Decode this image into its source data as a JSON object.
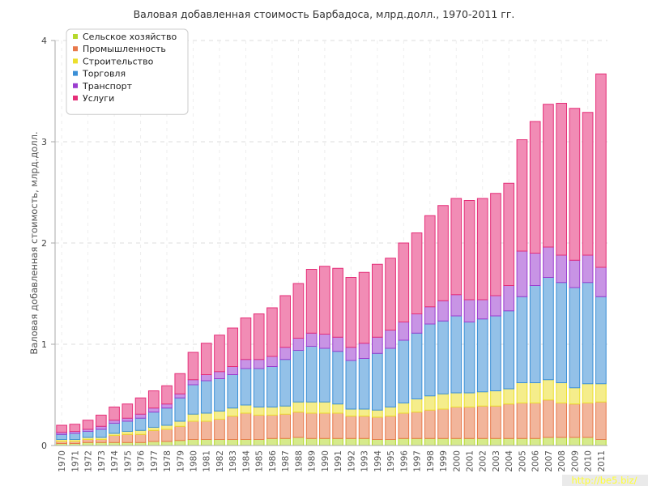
{
  "chart_data": {
    "type": "bar",
    "stacked": true,
    "title": "Валовая добавленная стоимость Барбадоса, млрд.долл., 1970-2011 гг.",
    "xlabel": "",
    "ylabel": "Валовая добавленная стоимость, млрд.долл.",
    "ylim": [
      0,
      4
    ],
    "yticks": [
      "0",
      "1",
      "2",
      "3",
      "4"
    ],
    "grid": true,
    "legend_position": "top-left",
    "categories": [
      "1970",
      "1971",
      "1972",
      "1973",
      "1974",
      "1975",
      "1976",
      "1977",
      "1978",
      "1979",
      "1980",
      "1981",
      "1982",
      "1983",
      "1984",
      "1985",
      "1986",
      "1987",
      "1988",
      "1989",
      "1990",
      "1991",
      "1992",
      "1993",
      "1994",
      "1995",
      "1996",
      "1997",
      "1998",
      "1999",
      "2000",
      "2001",
      "2002",
      "2003",
      "2004",
      "2005",
      "2006",
      "2007",
      "2008",
      "2009",
      "2010",
      "2011"
    ],
    "series": [
      {
        "name": "Сельское хозяйство",
        "color": "#b5d82c",
        "values": [
          0.02,
          0.02,
          0.03,
          0.03,
          0.03,
          0.03,
          0.03,
          0.04,
          0.04,
          0.05,
          0.06,
          0.06,
          0.06,
          0.06,
          0.06,
          0.06,
          0.07,
          0.07,
          0.08,
          0.07,
          0.07,
          0.07,
          0.07,
          0.07,
          0.06,
          0.06,
          0.07,
          0.07,
          0.07,
          0.07,
          0.07,
          0.07,
          0.07,
          0.07,
          0.07,
          0.07,
          0.07,
          0.08,
          0.08,
          0.08,
          0.08,
          0.06
        ]
      },
      {
        "name": "Промышленность",
        "color": "#e8784a",
        "values": [
          0.02,
          0.02,
          0.03,
          0.03,
          0.07,
          0.08,
          0.08,
          0.11,
          0.12,
          0.14,
          0.18,
          0.18,
          0.2,
          0.23,
          0.26,
          0.24,
          0.23,
          0.24,
          0.25,
          0.25,
          0.25,
          0.25,
          0.22,
          0.22,
          0.22,
          0.23,
          0.25,
          0.26,
          0.28,
          0.29,
          0.31,
          0.31,
          0.32,
          0.32,
          0.34,
          0.35,
          0.35,
          0.37,
          0.34,
          0.33,
          0.34,
          0.37
        ]
      },
      {
        "name": "Строительство",
        "color": "#ecdf2c",
        "values": [
          0.02,
          0.02,
          0.02,
          0.02,
          0.02,
          0.03,
          0.04,
          0.03,
          0.04,
          0.05,
          0.07,
          0.08,
          0.08,
          0.08,
          0.08,
          0.08,
          0.08,
          0.08,
          0.1,
          0.11,
          0.11,
          0.09,
          0.07,
          0.07,
          0.07,
          0.09,
          0.1,
          0.13,
          0.14,
          0.15,
          0.14,
          0.14,
          0.14,
          0.15,
          0.15,
          0.2,
          0.2,
          0.2,
          0.2,
          0.16,
          0.19,
          0.18
        ]
      },
      {
        "name": "Торговля",
        "color": "#3b8fd6",
        "values": [
          0.05,
          0.06,
          0.06,
          0.08,
          0.1,
          0.1,
          0.12,
          0.15,
          0.17,
          0.23,
          0.29,
          0.32,
          0.32,
          0.33,
          0.36,
          0.38,
          0.4,
          0.46,
          0.51,
          0.55,
          0.53,
          0.52,
          0.48,
          0.5,
          0.56,
          0.58,
          0.62,
          0.65,
          0.71,
          0.72,
          0.76,
          0.7,
          0.72,
          0.74,
          0.77,
          0.85,
          0.96,
          1.01,
          0.99,
          0.99,
          1.0,
          0.86
        ]
      },
      {
        "name": "Транспорт",
        "color": "#9b3dcf",
        "values": [
          0.02,
          0.02,
          0.02,
          0.03,
          0.03,
          0.03,
          0.04,
          0.04,
          0.04,
          0.04,
          0.05,
          0.06,
          0.07,
          0.08,
          0.09,
          0.09,
          0.1,
          0.12,
          0.12,
          0.13,
          0.14,
          0.14,
          0.13,
          0.15,
          0.16,
          0.18,
          0.18,
          0.19,
          0.17,
          0.2,
          0.21,
          0.22,
          0.19,
          0.2,
          0.25,
          0.45,
          0.32,
          0.3,
          0.27,
          0.27,
          0.27,
          0.29
        ]
      },
      {
        "name": "Услуги",
        "color": "#e52e78",
        "values": [
          0.07,
          0.07,
          0.09,
          0.11,
          0.13,
          0.14,
          0.16,
          0.17,
          0.18,
          0.2,
          0.27,
          0.31,
          0.36,
          0.38,
          0.41,
          0.45,
          0.48,
          0.51,
          0.54,
          0.63,
          0.67,
          0.68,
          0.69,
          0.7,
          0.72,
          0.71,
          0.78,
          0.8,
          0.9,
          0.94,
          0.95,
          0.98,
          1.0,
          1.01,
          1.01,
          1.1,
          1.3,
          1.41,
          1.5,
          1.5,
          1.41,
          1.91
        ]
      }
    ]
  },
  "watermark": "http://be5.biz/"
}
